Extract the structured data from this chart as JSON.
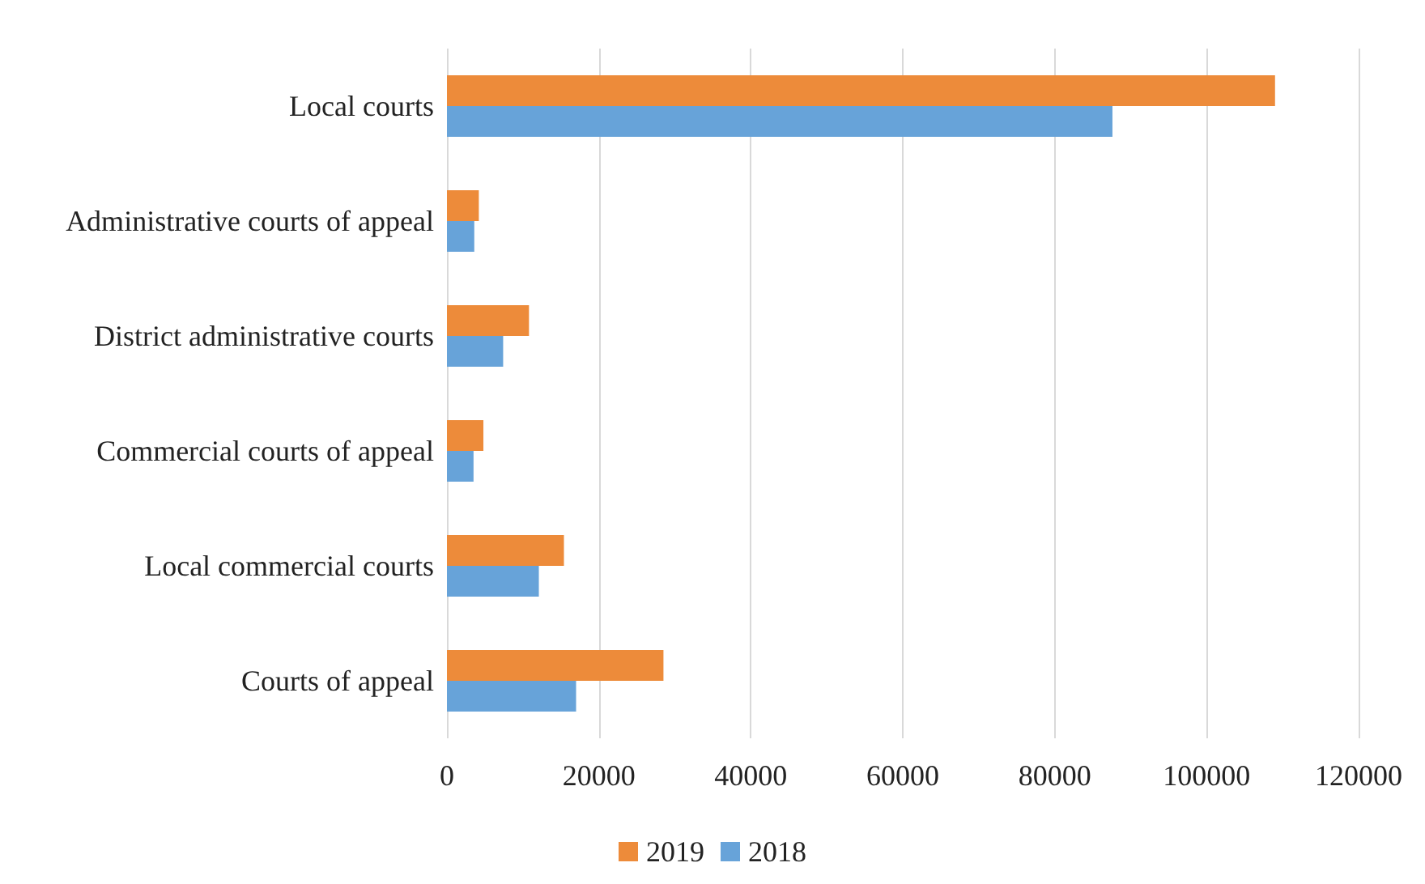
{
  "chart_data": {
    "type": "bar",
    "orientation": "horizontal",
    "categories": [
      "Local courts",
      "Administrative courts of appeal",
      "District administrative courts",
      "Commercial courts of appeal",
      "Local commercial courts",
      "Courts of appeal"
    ],
    "series": [
      {
        "name": "2019",
        "color": "#ed8b3a",
        "values": [
          109000,
          4200,
          10800,
          4800,
          15400,
          28500
        ]
      },
      {
        "name": "2018",
        "color": "#67a3d9",
        "values": [
          87600,
          3600,
          7400,
          3500,
          12100,
          17000
        ]
      }
    ],
    "xlim": [
      0,
      120000
    ],
    "xticks": [
      0,
      20000,
      40000,
      60000,
      80000,
      100000,
      120000
    ],
    "grid": "x",
    "legend": "bottom"
  }
}
